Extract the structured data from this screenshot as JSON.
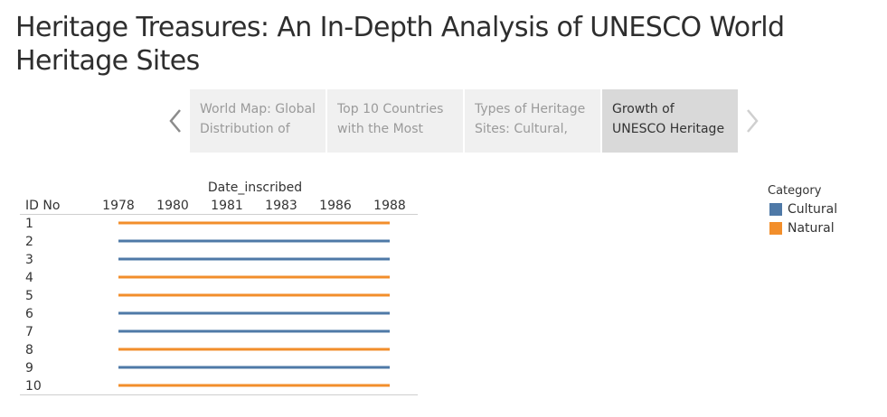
{
  "title": "Heritage Treasures: An In-Depth Analysis of UNESCO World Heritage Sites",
  "story_points": [
    {
      "line1": "World Map: Global",
      "line2": "Distribution of",
      "active": false
    },
    {
      "line1": "Top 10 Countries",
      "line2": "with the Most",
      "active": false
    },
    {
      "line1": "Types of Heritage",
      "line2": "Sites: Cultural,",
      "active": false
    },
    {
      "line1": "Growth of",
      "line2": "UNESCO Heritage",
      "active": true
    }
  ],
  "nav": {
    "prev_icon": "chevron-left-icon",
    "next_icon": "chevron-right-icon"
  },
  "colors": {
    "cultural": "#4e79a7",
    "natural": "#f28e2b",
    "tab_bg": "#f0f0f0",
    "tab_active_bg": "#d9d9d9"
  },
  "legend": {
    "title": "Category",
    "items": [
      {
        "label": "Cultural",
        "color": "#4e79a7"
      },
      {
        "label": "Natural",
        "color": "#f28e2b"
      }
    ]
  },
  "chart_data": {
    "type": "gantt",
    "xlabel": "Date_inscribed",
    "row_header": "ID No",
    "x_ticks": [
      "1978",
      "1980",
      "1981",
      "1983",
      "1986",
      "1988"
    ],
    "rows": [
      {
        "id": "1",
        "category": "Natural",
        "start": 1978,
        "end": 1988
      },
      {
        "id": "2",
        "category": "Cultural",
        "start": 1978,
        "end": 1988
      },
      {
        "id": "3",
        "category": "Cultural",
        "start": 1978,
        "end": 1988
      },
      {
        "id": "4",
        "category": "Natural",
        "start": 1978,
        "end": 1988
      },
      {
        "id": "5",
        "category": "Natural",
        "start": 1978,
        "end": 1988
      },
      {
        "id": "6",
        "category": "Cultural",
        "start": 1978,
        "end": 1988
      },
      {
        "id": "7",
        "category": "Cultural",
        "start": 1978,
        "end": 1988
      },
      {
        "id": "8",
        "category": "Natural",
        "start": 1978,
        "end": 1988
      },
      {
        "id": "9",
        "category": "Cultural",
        "start": 1978,
        "end": 1988
      },
      {
        "id": "10",
        "category": "Natural",
        "start": 1978,
        "end": 1988
      }
    ]
  }
}
